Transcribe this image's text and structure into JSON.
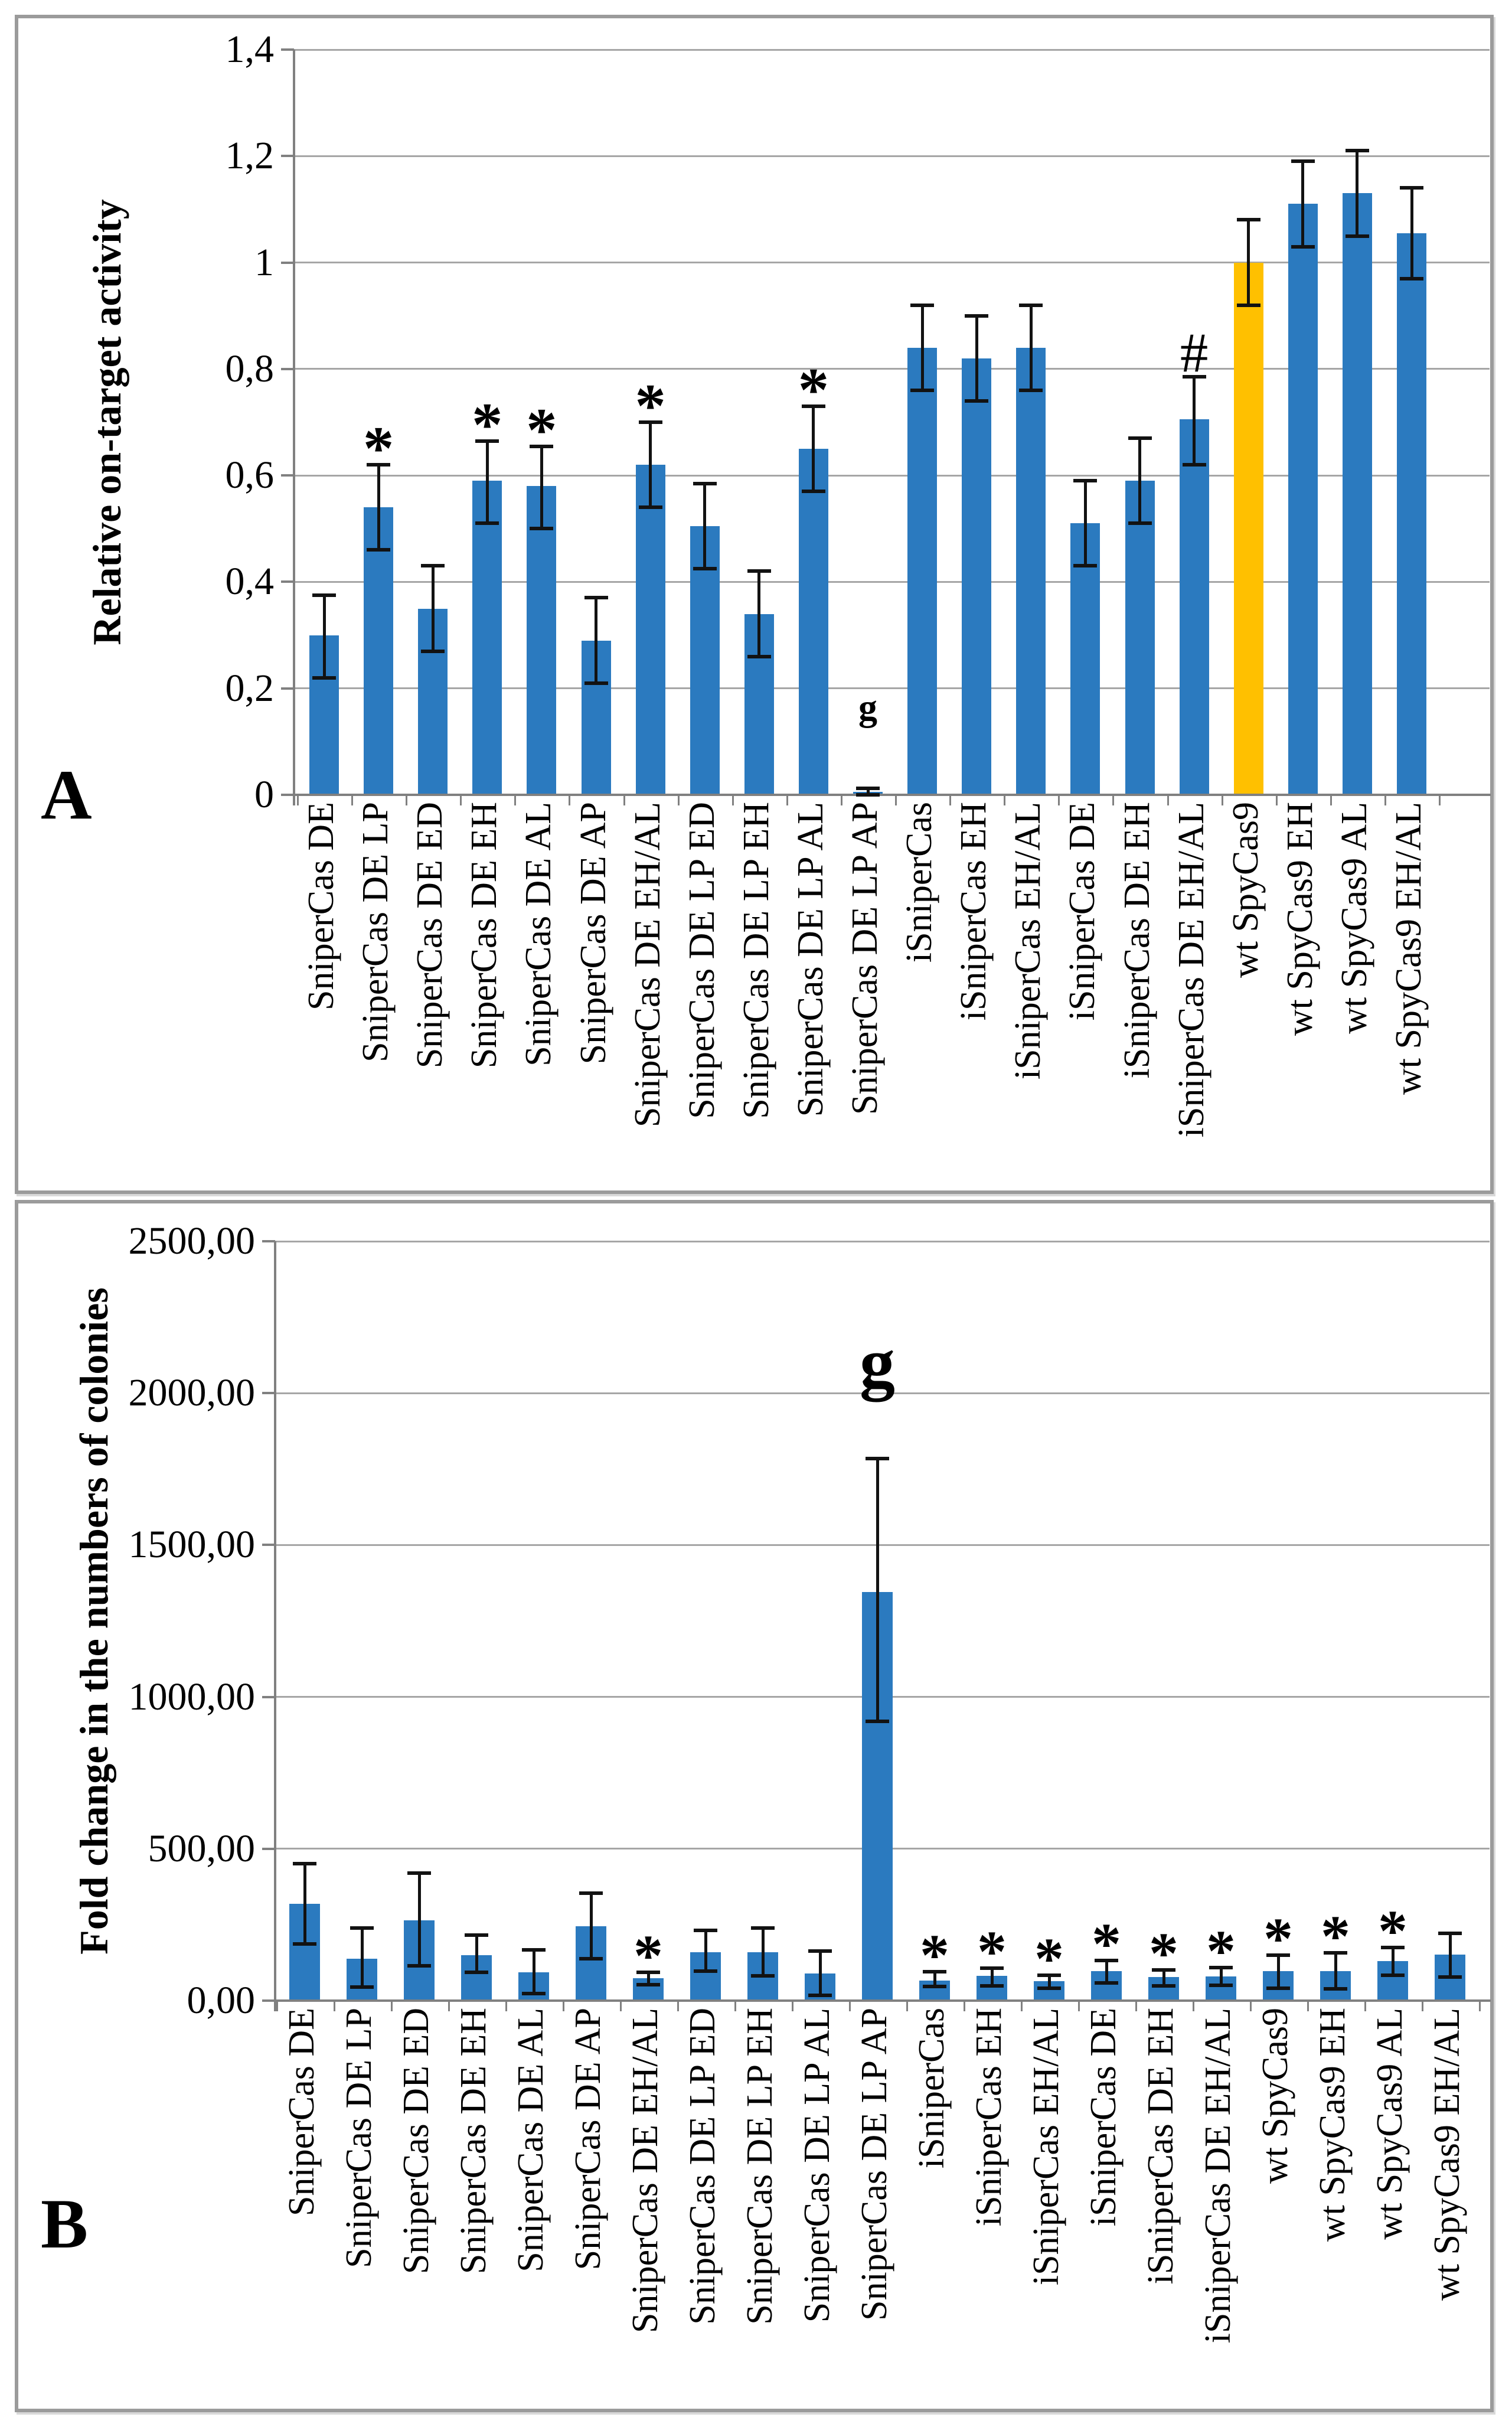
{
  "figure_title": "",
  "colors": {
    "bar_blue": "#2B7ABF",
    "bar_orange": "#FFC000",
    "gridline": "#A6A6A6",
    "axis": "#808080",
    "error_bar": "#121212",
    "panel_border": "#9B9B9B",
    "background": "#FFFFFF"
  },
  "chart_data": [
    {
      "type": "bar",
      "panel": "A",
      "ylabel": "Relative on-target activity",
      "xlabel": "",
      "ylim": [
        0,
        1.4
      ],
      "grid": true,
      "legend": "none",
      "decimal_style": "comma",
      "y_ticks": [
        {
          "v": 1.4,
          "label": "1,4"
        },
        {
          "v": 1.2,
          "label": "1,2"
        },
        {
          "v": 1.0,
          "label": "1"
        },
        {
          "v": 0.8,
          "label": "0,8"
        },
        {
          "v": 0.6,
          "label": "0,6"
        },
        {
          "v": 0.4,
          "label": "0,4"
        },
        {
          "v": 0.2,
          "label": "0,2"
        },
        {
          "v": 0.0,
          "label": "0"
        }
      ],
      "highlight_index": 17,
      "categories": [
        "SniperCas DE",
        "SniperCas DE LP",
        "SniperCas DE ED",
        "SniperCas DE EH",
        "SniperCas DE AL",
        "SniperCas DE AP",
        "SniperCas DE EH/AL",
        "SniperCas DE LP ED",
        "SniperCas DE LP EH",
        "SniperCas DE LP AL",
        "SniperCas DE LP AP",
        "iSniperCas",
        "iSniperCas EH",
        "iSniperCas EH/AL",
        "iSniperCas DE",
        "iSniperCas DE EH",
        "iSniperCas DE EH/AL",
        "wt SpyCas9",
        "wt SpyCas9 EH",
        "wt SpyCas9 AL",
        "wt SpyCas9 EH/AL"
      ],
      "values": [
        0.3,
        0.54,
        0.35,
        0.59,
        0.58,
        0.29,
        0.62,
        0.505,
        0.34,
        0.65,
        0.005,
        0.84,
        0.82,
        0.84,
        0.51,
        0.59,
        0.705,
        1.0,
        1.11,
        1.13,
        1.055
      ],
      "err_lo": [
        0.22,
        0.46,
        0.27,
        0.51,
        0.5,
        0.21,
        0.54,
        0.425,
        0.26,
        0.57,
        0.0,
        0.76,
        0.74,
        0.76,
        0.43,
        0.51,
        0.62,
        0.92,
        1.03,
        1.05,
        0.97
      ],
      "err_hi": [
        0.375,
        0.62,
        0.43,
        0.665,
        0.655,
        0.37,
        0.7,
        0.585,
        0.42,
        0.73,
        0.012,
        0.92,
        0.9,
        0.92,
        0.59,
        0.67,
        0.785,
        1.08,
        1.19,
        1.21,
        1.14
      ],
      "annotations": [
        "",
        "*",
        "",
        "*",
        "*",
        "",
        "*",
        "",
        "",
        "*",
        "g",
        "",
        "",
        "",
        "",
        "",
        "#",
        "",
        "",
        "",
        ""
      ]
    },
    {
      "type": "bar",
      "panel": "B",
      "ylabel": "Fold change in the numbers of colonies",
      "xlabel": "",
      "ylim": [
        0,
        2500
      ],
      "grid": true,
      "legend": "none",
      "decimal_style": "comma",
      "y_ticks": [
        {
          "v": 2500,
          "label": "2500,00"
        },
        {
          "v": 2000,
          "label": "2000,00"
        },
        {
          "v": 1500,
          "label": "1500,00"
        },
        {
          "v": 1000,
          "label": "1000,00"
        },
        {
          "v": 500,
          "label": "500,00"
        },
        {
          "v": 0,
          "label": "0,00"
        }
      ],
      "highlight_index": -1,
      "categories": [
        "SniperCas DE",
        "SniperCas DE LP",
        "SniperCas DE ED",
        "SniperCas DE EH",
        "SniperCas DE AL",
        "SniperCas DE AP",
        "SniperCas DE EH/AL",
        "SniperCas DE LP ED",
        "SniperCas DE LP EH",
        "SniperCas DE LP AL",
        "SniperCas DE LP AP",
        "iSniperCas",
        "iSniperCas EH",
        "iSniperCas EH/AL",
        "iSniperCas DE",
        "iSniperCas DE EH",
        "iSniperCas DE EH/AL",
        "wt SpyCas9",
        "wt SpyCas9 EH",
        "wt SpyCas9 AL",
        "wt SpyCas9 EH/AL"
      ],
      "values": [
        318,
        138,
        264,
        150,
        93,
        244,
        74,
        159,
        160,
        90,
        1345,
        66,
        81,
        64,
        97,
        78,
        79,
        97,
        97,
        130,
        151
      ],
      "err_lo": [
        186,
        44,
        114,
        93,
        23,
        138,
        52,
        97,
        81,
        17,
        920,
        46,
        48,
        41,
        58,
        48,
        50,
        41,
        39,
        83,
        78
      ],
      "err_hi": [
        451,
        240,
        419,
        215,
        167,
        353,
        93,
        232,
        240,
        163,
        1784,
        95,
        107,
        83,
        132,
        101,
        108,
        150,
        157,
        174,
        221
      ],
      "annotations": [
        "",
        "",
        "",
        "",
        "",
        "",
        "*",
        "",
        "",
        "",
        "g",
        "*",
        "*",
        "*",
        "*",
        "*",
        "*",
        "*",
        "*",
        "*",
        ""
      ]
    }
  ]
}
